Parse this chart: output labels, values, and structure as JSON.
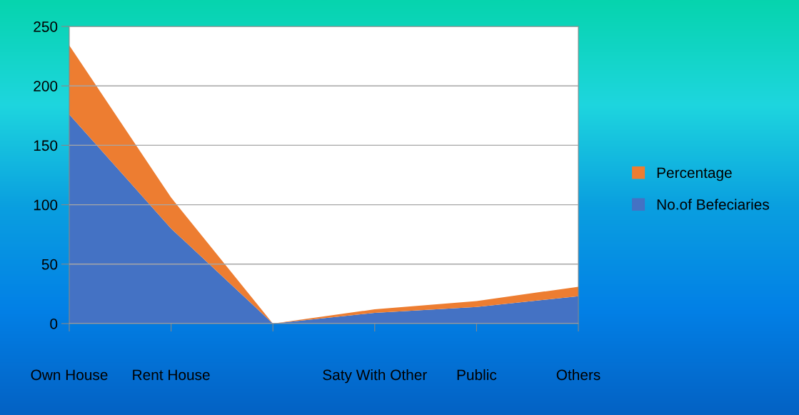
{
  "chart_data": {
    "type": "area",
    "stacked": true,
    "categories": [
      "Own House",
      "Rent House",
      null,
      "Saty With Other",
      "Public",
      "Others"
    ],
    "series": [
      {
        "name": "No.of Befeciaries",
        "color": "#4472c4",
        "values": [
          176,
          80,
          0,
          9,
          14,
          23
        ]
      },
      {
        "name": "Percentage",
        "color": "#ed7d31",
        "values": [
          58,
          26,
          0,
          3,
          5,
          8
        ]
      }
    ],
    "ylim": [
      0,
      250
    ],
    "yticks": [
      0,
      50,
      100,
      150,
      200,
      250
    ],
    "grid": "y",
    "legend": "right"
  }
}
